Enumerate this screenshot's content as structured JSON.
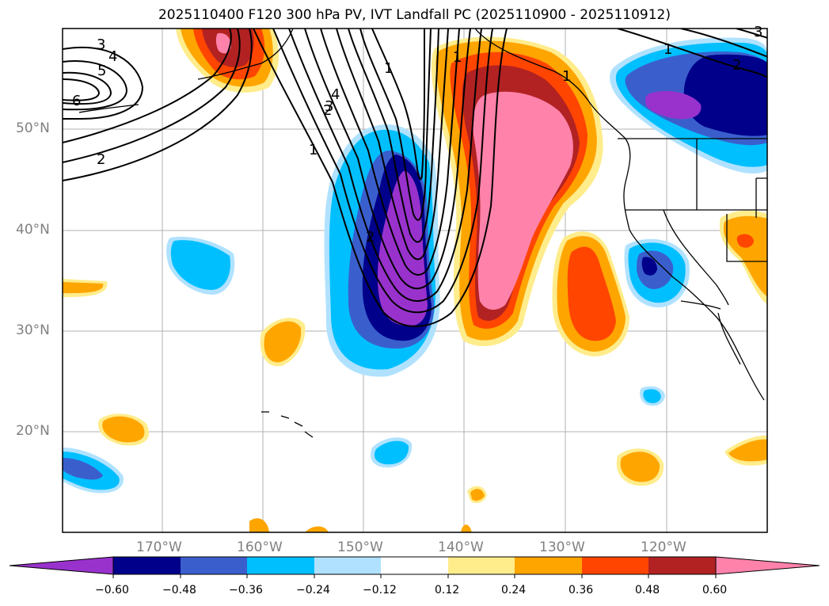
{
  "title": "2025110400 F120 300 hPa PV, IVT Landfall PC (2025110900 - 2025110912)",
  "lat_labels": [
    "50°N",
    "40°N",
    "30°N",
    "20°N"
  ],
  "lon_labels": [
    "170°W",
    "160°W",
    "150°W",
    "140°W",
    "130°W",
    "120°W"
  ],
  "contour_labels": [
    "3",
    "4",
    "5",
    "6",
    "2",
    "1",
    "2",
    "3",
    "4",
    "1",
    "2",
    "1",
    "1",
    "1",
    "2",
    "3"
  ],
  "colorbar": {
    "ticks": [
      "−0.60",
      "−0.48",
      "−0.36",
      "−0.24",
      "−0.12",
      "0.12",
      "0.24",
      "0.36",
      "0.48",
      "0.60"
    ],
    "colors": [
      "#9932cc",
      "#00008b",
      "#3a5fcd",
      "#00bfff",
      "#b0e2ff",
      "#ffffff",
      "#ffec8b",
      "#ffa500",
      "#ff4500",
      "#b22222",
      "#ff82ab"
    ]
  }
}
